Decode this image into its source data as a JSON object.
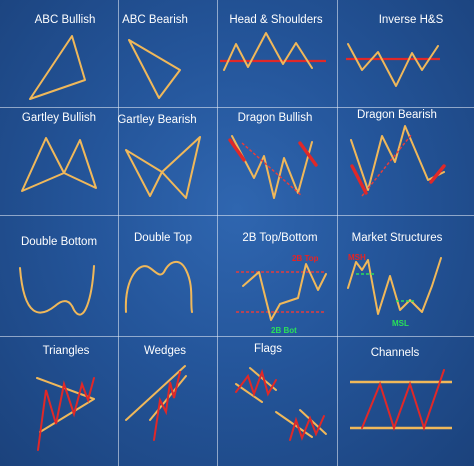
{
  "grid": {
    "row1": [
      "ABC Bullish",
      "ABC Bearish",
      "Head & Shoulders",
      "Inverse H&S"
    ],
    "row2": [
      "Gartley Bullish",
      "Gartley Bearish",
      "Dragon Bullish",
      "Dragon Bearish"
    ],
    "row3": [
      "Double Bottom",
      "Double Top",
      "2B Top/Bottom",
      "Market Structures"
    ],
    "row4": [
      "Triangles",
      "Wedges",
      "Flags",
      "Channels"
    ]
  },
  "annotations": {
    "twob_top": "2B Top",
    "twob_bot": "2B Bot",
    "msh": "MSH",
    "msl": "MSL"
  },
  "colors": {
    "background": "#24559a",
    "pattern_line": "#f0b85a",
    "signal_line": "#e02828",
    "green_label": "#29e05a",
    "grid": "#e8eef8"
  }
}
